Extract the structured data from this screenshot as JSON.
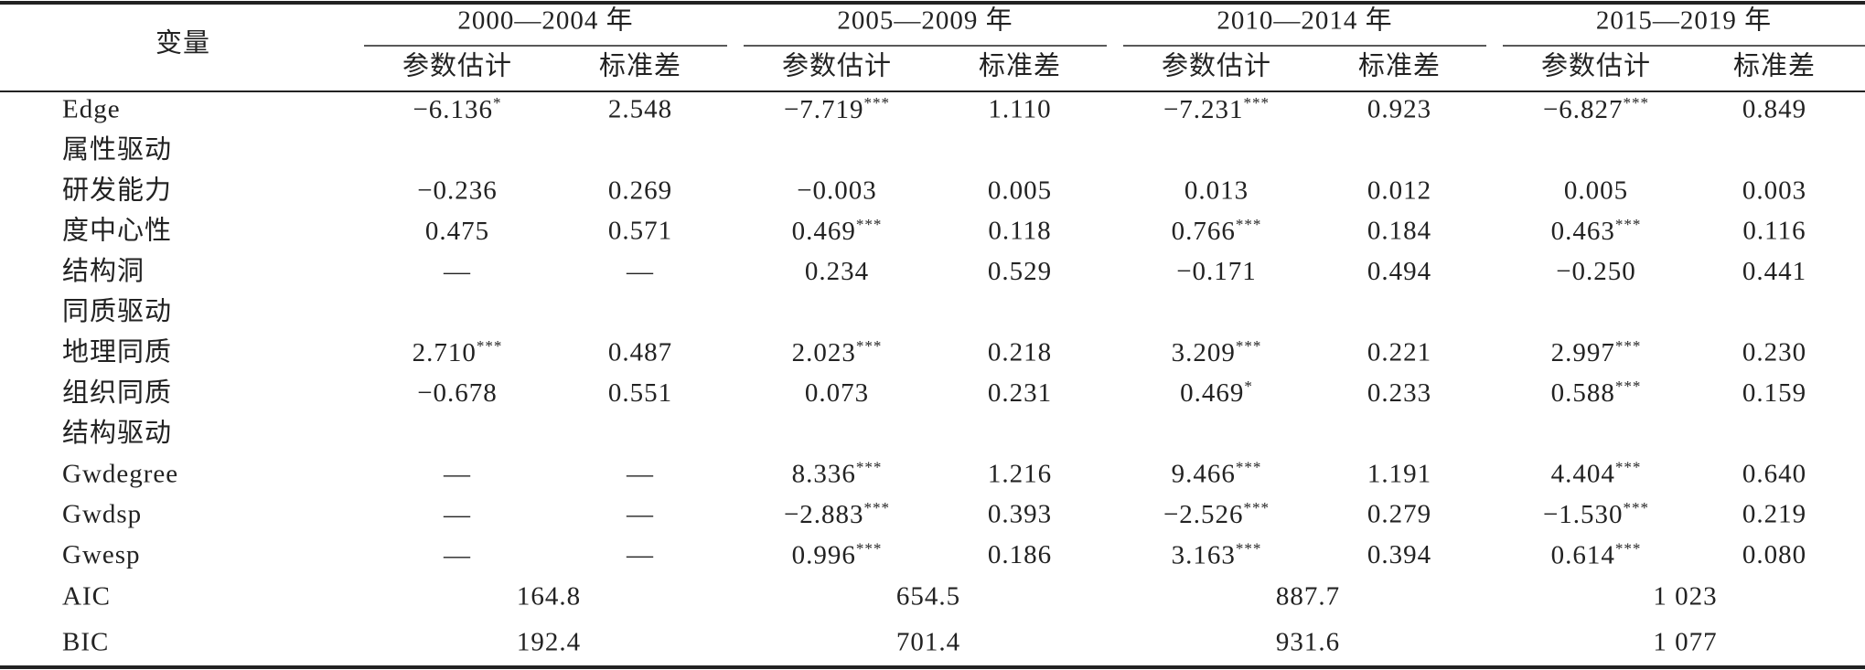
{
  "header": {
    "variable": "变量",
    "periods": [
      "2000—2004 年",
      "2005—2009 年",
      "2010—2014 年",
      "2015—2019 年"
    ],
    "columns": [
      "参数估计",
      "标准差"
    ]
  },
  "rows": [
    {
      "label": "Edge",
      "cells": [
        {
          "estimate": "−6.136",
          "stars": "*",
          "se": "2.548"
        },
        {
          "estimate": "−7.719",
          "stars": "***",
          "se": "1.110"
        },
        {
          "estimate": "−7.231",
          "stars": "***",
          "se": "0.923"
        },
        {
          "estimate": "−6.827",
          "stars": "***",
          "se": "0.849"
        }
      ]
    },
    {
      "label": "属性驱动"
    },
    {
      "label": "研发能力",
      "cells": [
        {
          "estimate": "−0.236",
          "se": "0.269"
        },
        {
          "estimate": "−0.003",
          "se": "0.005"
        },
        {
          "estimate": "0.013",
          "se": "0.012"
        },
        {
          "estimate": "0.005",
          "se": "0.003"
        }
      ]
    },
    {
      "label": "度中心性",
      "cells": [
        {
          "estimate": "0.475",
          "se": "0.571"
        },
        {
          "estimate": "0.469",
          "stars": "***",
          "se": "0.118"
        },
        {
          "estimate": "0.766",
          "stars": "***",
          "se": "0.184"
        },
        {
          "estimate": "0.463",
          "stars": "***",
          "se": "0.116"
        }
      ]
    },
    {
      "label": "结构洞",
      "cells": [
        {
          "estimate": "—",
          "se": "—"
        },
        {
          "estimate": "0.234",
          "se": "0.529"
        },
        {
          "estimate": "−0.171",
          "se": "0.494"
        },
        {
          "estimate": "−0.250",
          "se": "0.441"
        }
      ]
    },
    {
      "label": "同质驱动"
    },
    {
      "label": "地理同质",
      "cells": [
        {
          "estimate": "2.710",
          "stars": "***",
          "se": "0.487"
        },
        {
          "estimate": "2.023",
          "stars": "***",
          "se": "0.218"
        },
        {
          "estimate": "3.209",
          "stars": "***",
          "se": "0.221"
        },
        {
          "estimate": "2.997",
          "stars": "***",
          "se": "0.230"
        }
      ]
    },
    {
      "label": "组织同质",
      "cells": [
        {
          "estimate": "−0.678",
          "se": "0.551"
        },
        {
          "estimate": "0.073",
          "se": "0.231"
        },
        {
          "estimate": "0.469",
          "stars": "*",
          "se": "0.233"
        },
        {
          "estimate": "0.588",
          "stars": "***",
          "se": "0.159"
        }
      ]
    },
    {
      "label": "结构驱动"
    },
    {
      "label": "Gwdegree",
      "cells": [
        {
          "estimate": "—",
          "se": "—"
        },
        {
          "estimate": "8.336",
          "stars": "***",
          "se": "1.216"
        },
        {
          "estimate": "9.466",
          "stars": "***",
          "se": "1.191"
        },
        {
          "estimate": "4.404",
          "stars": "***",
          "se": "0.640"
        }
      ]
    },
    {
      "label": "Gwdsp",
      "cells": [
        {
          "estimate": "—",
          "se": "—"
        },
        {
          "estimate": "−2.883",
          "stars": "***",
          "se": "0.393"
        },
        {
          "estimate": "−2.526",
          "stars": "***",
          "se": "0.279"
        },
        {
          "estimate": "−1.530",
          "stars": "***",
          "se": "0.219"
        }
      ]
    },
    {
      "label": "Gwesp",
      "cells": [
        {
          "estimate": "—",
          "se": "—"
        },
        {
          "estimate": "0.996",
          "stars": "***",
          "se": "0.186"
        },
        {
          "estimate": "3.163",
          "stars": "***",
          "se": "0.394"
        },
        {
          "estimate": "0.614",
          "stars": "***",
          "se": "0.080"
        }
      ]
    }
  ],
  "fit": [
    {
      "label": "AIC",
      "values": [
        "164.8",
        "654.5",
        "887.7",
        "1 023"
      ]
    },
    {
      "label": "BIC",
      "values": [
        "192.4",
        "701.4",
        "931.6",
        "1 077"
      ]
    }
  ]
}
